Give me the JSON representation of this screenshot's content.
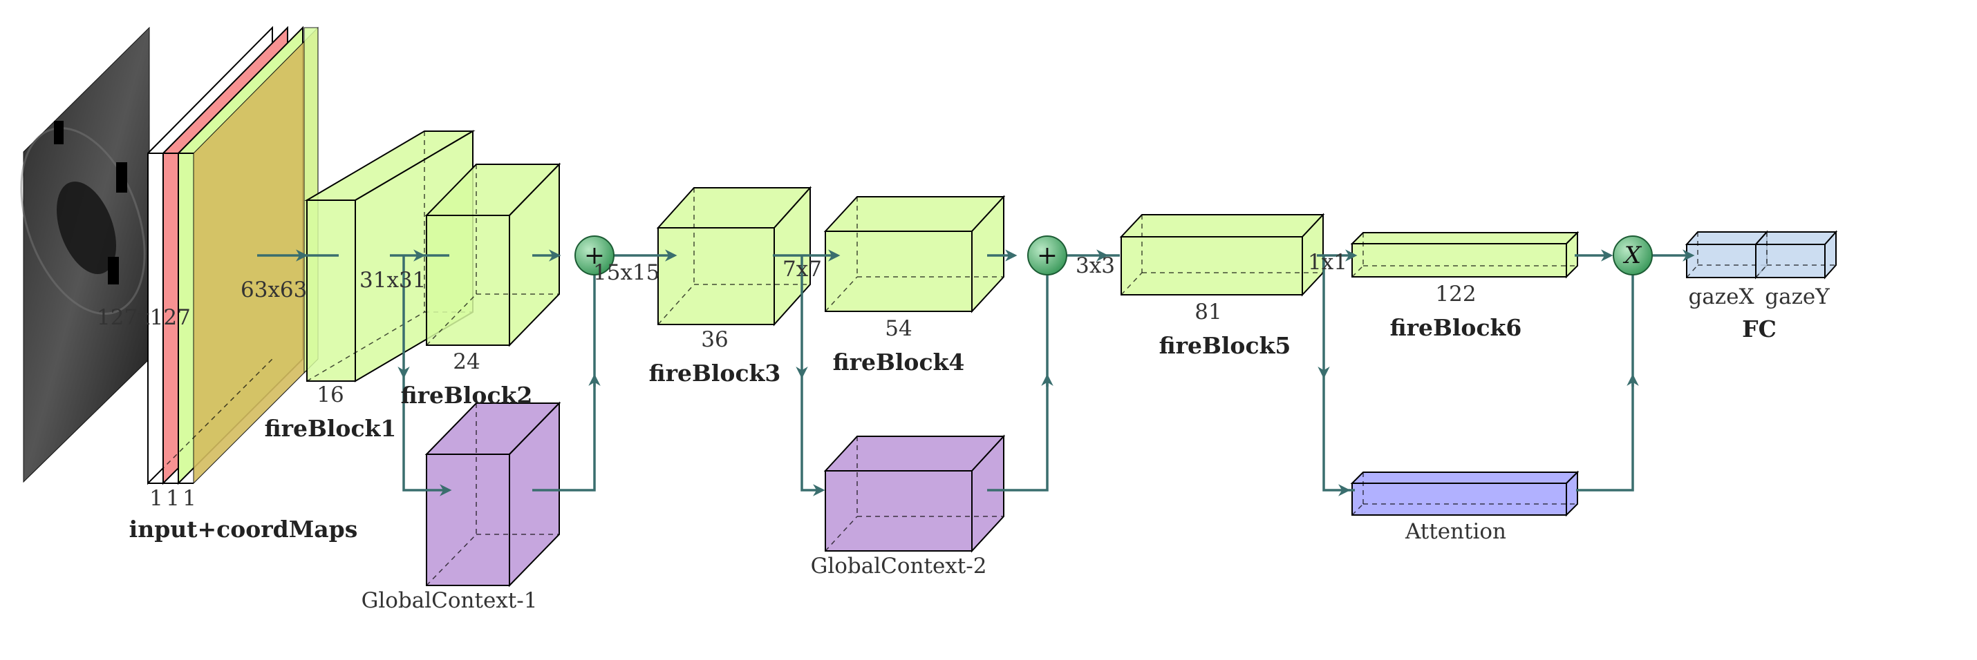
{
  "colors": {
    "fire": "#d7fca0",
    "global": "#bc97d8",
    "attention": "#a3a3ff",
    "fc": "#c3d7ee",
    "sum_node": "#6fbf8a",
    "connector": "#3a6e6e",
    "red_map": "#f79292",
    "orange_map": "#d4bd60"
  },
  "input": {
    "size_label": "127x127",
    "channel_labels": [
      "1",
      "1",
      "1"
    ],
    "block_label": "input+coordMaps"
  },
  "size_labels": {
    "s63": "63x63",
    "s31": "31x31",
    "s15": "15x15",
    "s7": "7x7",
    "s3": "3x3",
    "s1": "1x1"
  },
  "blocks": {
    "fb1": {
      "channels": "16",
      "label": "fireBlock1"
    },
    "fb2": {
      "channels": "24",
      "label": "fireBlock2"
    },
    "fb3": {
      "channels": "36",
      "label": "fireBlock3"
    },
    "fb4": {
      "channels": "54",
      "label": "fireBlock4"
    },
    "fb5": {
      "channels": "81",
      "label": "fireBlock5"
    },
    "fb6": {
      "channels": "122",
      "label": "fireBlock6"
    },
    "gc1": {
      "label": "GlobalContext-1"
    },
    "gc2": {
      "label": "GlobalContext-2"
    },
    "attention": {
      "label": "Attention"
    },
    "fc": {
      "outputs": [
        "gazeX",
        "gazeY"
      ],
      "label": "FC"
    }
  },
  "nodes": {
    "add_symbol": "+",
    "mul_symbol": "X"
  }
}
